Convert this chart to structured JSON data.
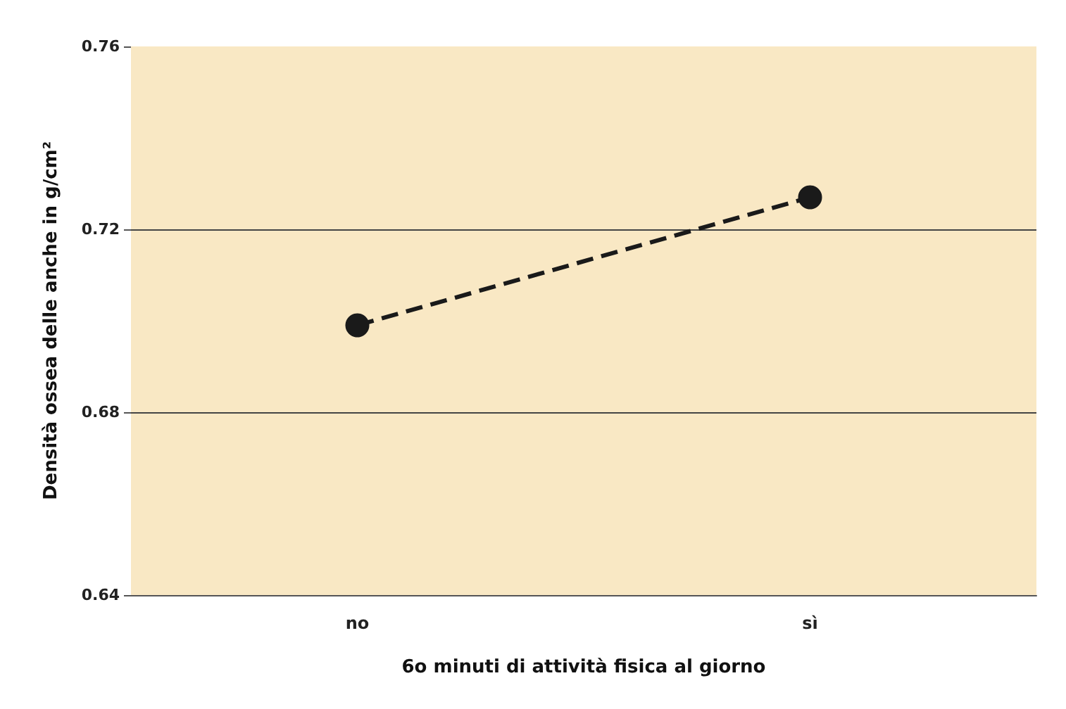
{
  "chart_data": {
    "type": "line",
    "xlabel": "6o minuti di attività fisica al giorno",
    "ylabel": "Densità ossea delle anche in g/cm²",
    "categories": [
      "no",
      "sì"
    ],
    "series": [
      {
        "color": "#1a1a1a",
        "values": [
          0.699,
          0.727
        ]
      }
    ],
    "ylim": [
      0.64,
      0.76
    ],
    "yticks": [
      0.64,
      0.68,
      0.72,
      0.76
    ],
    "grid": "y",
    "marker": "circle",
    "line_style": "dashed"
  }
}
